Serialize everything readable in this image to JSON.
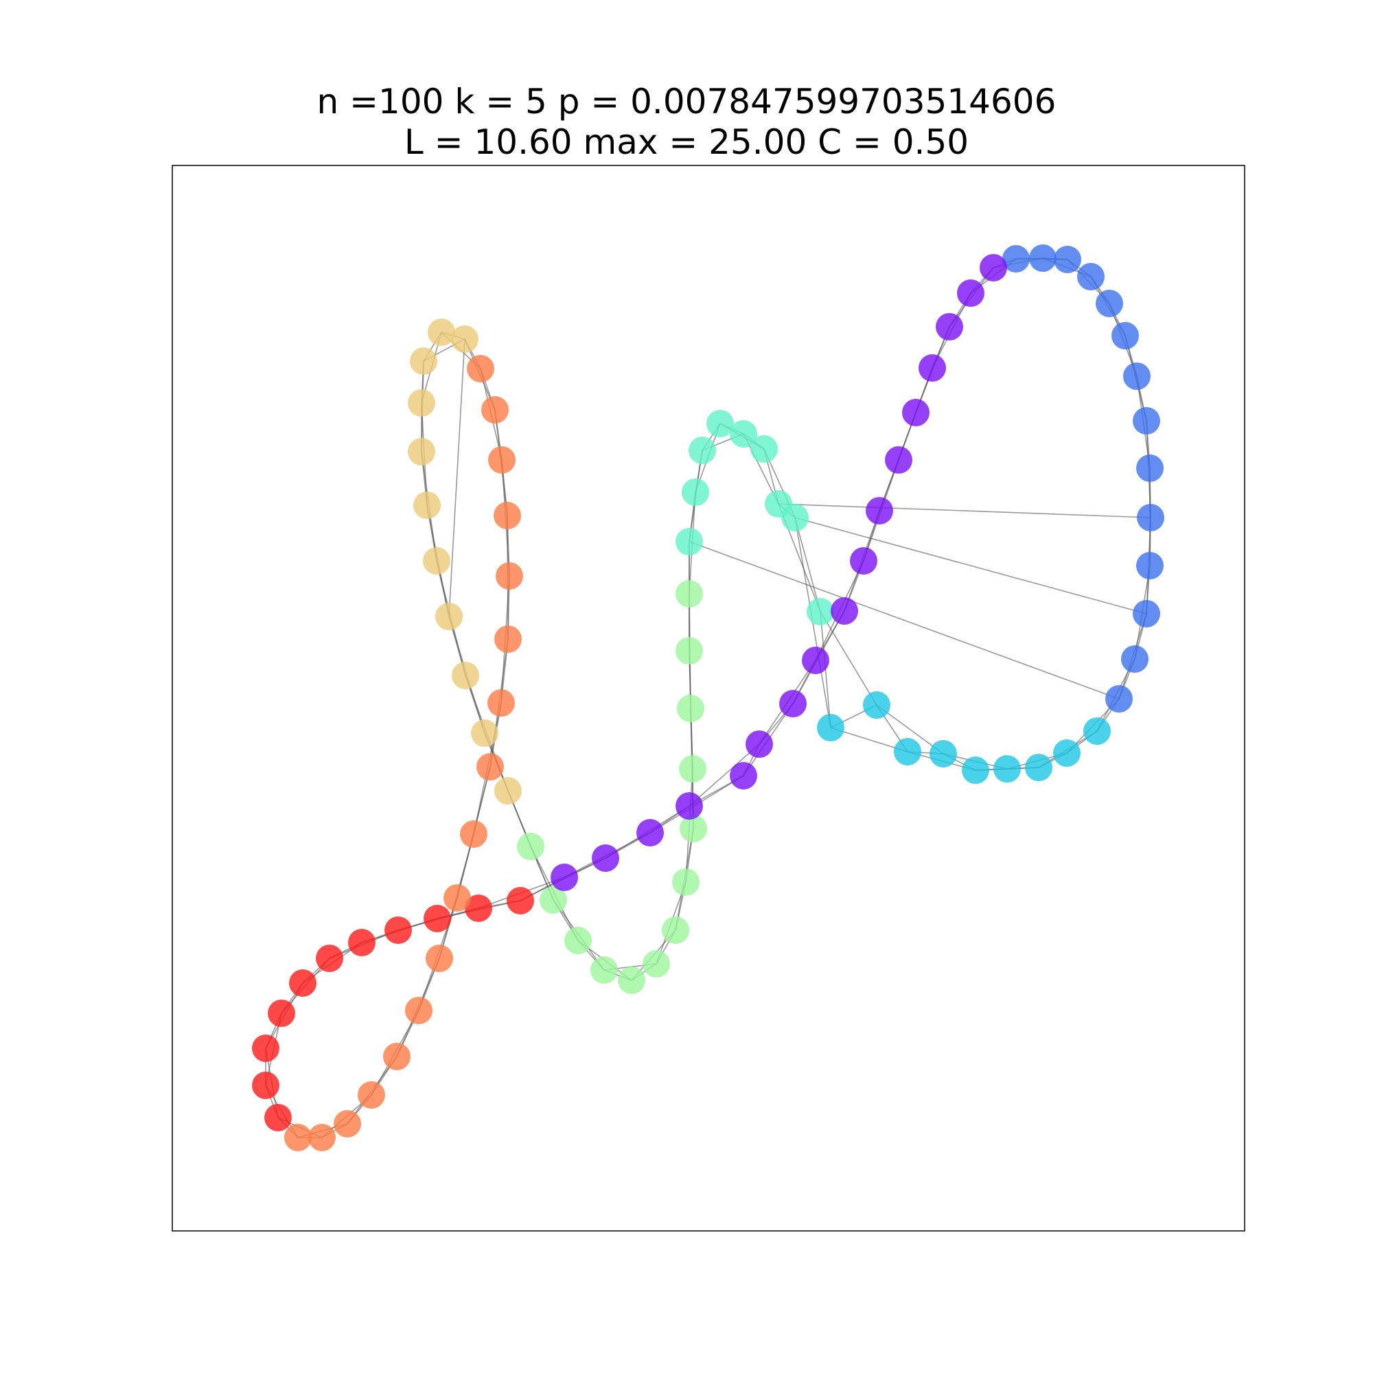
{
  "figure": {
    "title_line_1": "n =100 k = 5 p = 0.007847599703514606",
    "title_line_2": "L = 10.60 max = 25.00 C = 0.50"
  },
  "colors": {
    "red": "#ff1a1a",
    "orange": "#ff7a45",
    "tan": "#ebc978",
    "light-green": "#9cf59c",
    "aquamarine": "#5ff2c8",
    "cyan": "#1ec7e6",
    "blue": "#3c70ee",
    "violet": "#7a10f5"
  },
  "chart_data": {
    "type": "network",
    "node_count": 100,
    "layout": "ring lattice drawn as a looping curve",
    "node_colormap": "rainbow",
    "shortcut_edges": [
      [
        52,
        70
      ],
      [
        58,
        74
      ],
      [
        59,
        72
      ],
      [
        28,
        35
      ]
    ]
  }
}
